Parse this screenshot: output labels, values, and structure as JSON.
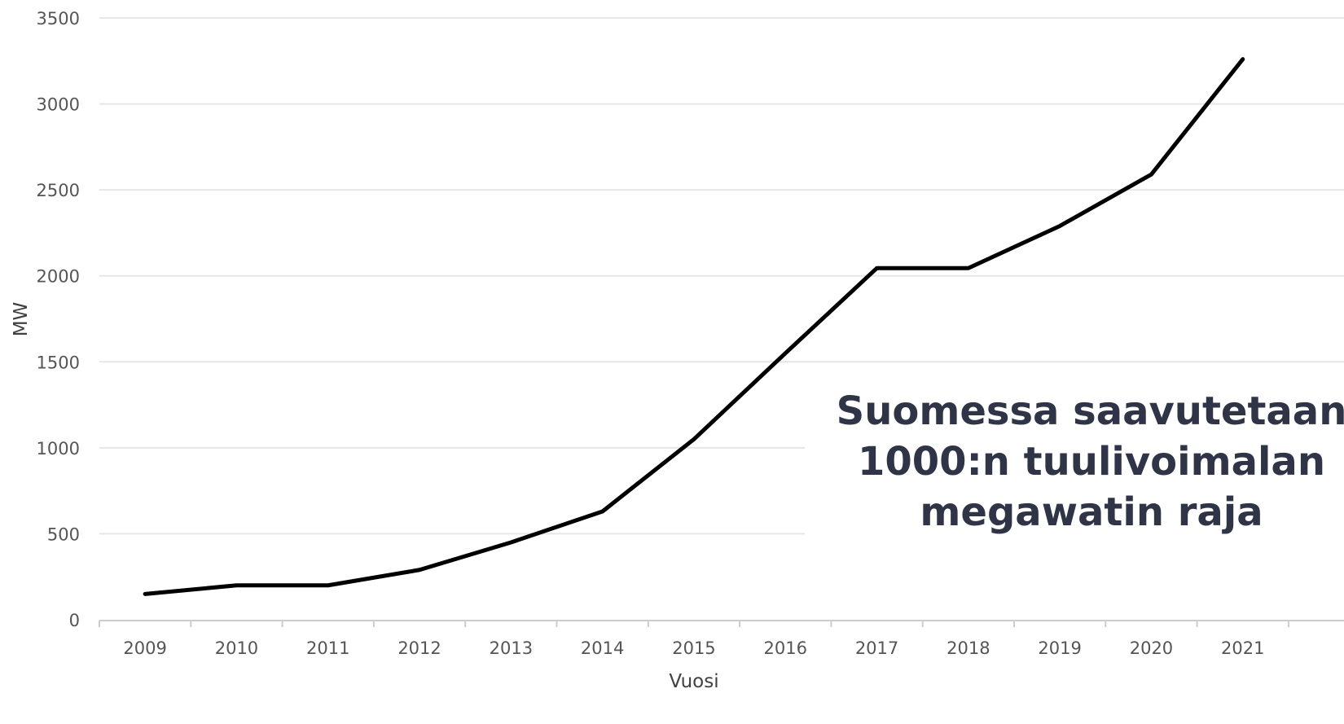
{
  "chart_data": {
    "type": "line",
    "title": "",
    "xlabel": "Vuosi",
    "ylabel": "MW",
    "categories": [
      "2009",
      "2010",
      "2011",
      "2012",
      "2013",
      "2014",
      "2015",
      "2016",
      "2017",
      "2018",
      "2019",
      "2020",
      "2021"
    ],
    "series": [
      {
        "values": [
          150,
          200,
          200,
          290,
          450,
          630,
          1050,
          1550,
          2045,
          2045,
          2290,
          2590,
          3260
        ],
        "color": "#000000"
      }
    ],
    "ylim": [
      0,
      3500
    ],
    "yticks": [
      0,
      500,
      1000,
      1500,
      2000,
      2500,
      3000,
      3500
    ],
    "grid": true,
    "gridColor": "#e6e6e6",
    "axisColor": "#cccccc"
  },
  "overlay": {
    "lines": [
      "Suomessa saavutetaan",
      "1000:n tuulivoimalan",
      "megawatin raja"
    ],
    "color": "#2f3447"
  }
}
